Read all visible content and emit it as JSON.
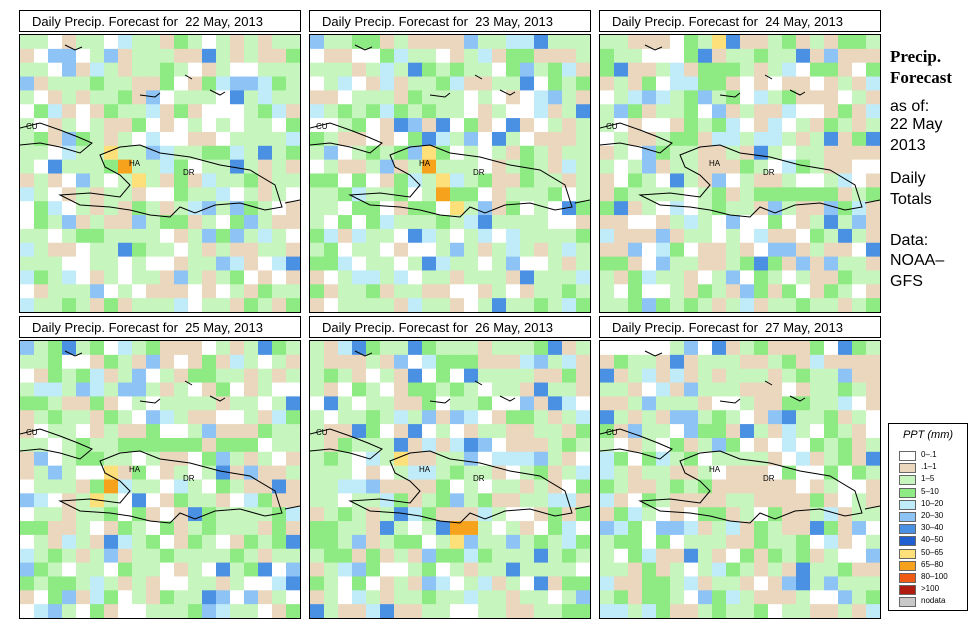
{
  "sidebar": {
    "title": "Precip. Forecast",
    "as_of_label": "as of:",
    "as_of_date": "22 May 2013",
    "totals_label": "Daily Totals",
    "data_label": "Data:",
    "data_source": "NOAA–GFS"
  },
  "legend": {
    "title": "PPT (mm)",
    "items": [
      {
        "label": "0–.1",
        "color": "#ffffff"
      },
      {
        "label": ".1–1",
        "color": "#ead7bd"
      },
      {
        "label": "1–5",
        "color": "#c6f5bd"
      },
      {
        "label": "5–10",
        "color": "#8eea82"
      },
      {
        "label": "10–20",
        "color": "#c0ecfa"
      },
      {
        "label": "20–30",
        "color": "#8ec3f5"
      },
      {
        "label": "30–40",
        "color": "#4a90e3"
      },
      {
        "label": "40–50",
        "color": "#1f5fd0"
      },
      {
        "label": "50–65",
        "color": "#fde07a"
      },
      {
        "label": "65–80",
        "color": "#f7a21c"
      },
      {
        "label": "80–100",
        "color": "#ef5b12"
      },
      {
        "label": ">100",
        "color": "#b11a0f"
      },
      {
        "label": "nodata",
        "color": "#c8c8c8"
      }
    ]
  },
  "map_labels": {
    "cuba": "CU",
    "haiti": "HA",
    "dominican_republic": "DR"
  },
  "panels": [
    {
      "title": "Daily Precip. Forecast for  22 May, 2013",
      "seed": 7,
      "wet": 0.55,
      "hot": [
        [
          8,
          6
        ],
        [
          9,
          7
        ],
        [
          10,
          8
        ]
      ]
    },
    {
      "title": "Daily Precip. Forecast for  23 May, 2013",
      "seed": 19,
      "wet": 0.62,
      "hot": [
        [
          8,
          8
        ],
        [
          9,
          8
        ],
        [
          10,
          9
        ],
        [
          11,
          9
        ],
        [
          12,
          10
        ]
      ]
    },
    {
      "title": "Daily Precip. Forecast for  24 May, 2013",
      "seed": 31,
      "wet": 0.4,
      "hot": [
        [
          0,
          8
        ]
      ]
    },
    {
      "title": "Daily Precip. Forecast for  25 May, 2013",
      "seed": 43,
      "wet": 0.55,
      "hot": [
        [
          9,
          6
        ],
        [
          10,
          6
        ],
        [
          11,
          5
        ]
      ]
    },
    {
      "title": "Daily Precip. Forecast for  26 May, 2013",
      "seed": 57,
      "wet": 0.5,
      "hot": [
        [
          8,
          6
        ],
        [
          13,
          10
        ],
        [
          14,
          10
        ],
        [
          13,
          11
        ]
      ]
    },
    {
      "title": "Daily Precip. Forecast for  27 May, 2013",
      "seed": 71,
      "wet": 0.42,
      "hot": []
    }
  ]
}
